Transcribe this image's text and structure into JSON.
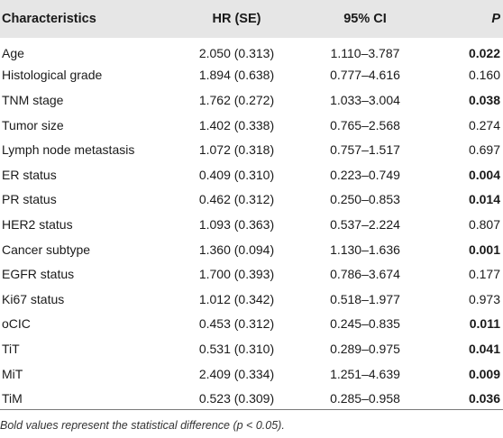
{
  "table": {
    "headers": {
      "characteristics": "Characteristics",
      "hr": "HR (SE)",
      "ci": "95% CI",
      "p": "P"
    },
    "rows": [
      {
        "characteristic": "Age",
        "hr": "2.050 (0.313)",
        "ci": "1.110–3.787",
        "p": "0.022",
        "significant": true
      },
      {
        "characteristic": "Histological grade",
        "hr": "1.894 (0.638)",
        "ci": "0.777–4.616",
        "p": "0.160",
        "significant": false
      },
      {
        "characteristic": "TNM stage",
        "hr": "1.762 (0.272)",
        "ci": "1.033–3.004",
        "p": "0.038",
        "significant": true
      },
      {
        "characteristic": "Tumor size",
        "hr": "1.402 (0.338)",
        "ci": "0.765–2.568",
        "p": "0.274",
        "significant": false
      },
      {
        "characteristic": "Lymph node metastasis",
        "hr": "1.072 (0.318)",
        "ci": "0.757–1.517",
        "p": "0.697",
        "significant": false
      },
      {
        "characteristic": "ER status",
        "hr": "0.409 (0.310)",
        "ci": "0.223–0.749",
        "p": "0.004",
        "significant": true
      },
      {
        "characteristic": "PR status",
        "hr": "0.462 (0.312)",
        "ci": "0.250–0.853",
        "p": "0.014",
        "significant": true
      },
      {
        "characteristic": "HER2 status",
        "hr": "1.093 (0.363)",
        "ci": "0.537–2.224",
        "p": "0.807",
        "significant": false
      },
      {
        "characteristic": "Cancer subtype",
        "hr": "1.360 (0.094)",
        "ci": "1.130–1.636",
        "p": "0.001",
        "significant": true
      },
      {
        "characteristic": "EGFR status",
        "hr": "1.700 (0.393)",
        "ci": "0.786–3.674",
        "p": "0.177",
        "significant": false
      },
      {
        "characteristic": "Ki67 status",
        "hr": "1.012 (0.342)",
        "ci": "0.518–1.977",
        "p": "0.973",
        "significant": false
      },
      {
        "characteristic": "oCIC",
        "hr": "0.453 (0.312)",
        "ci": "0.245–0.835",
        "p": "0.011",
        "significant": true
      },
      {
        "characteristic": "TiT",
        "hr": "0.531 (0.310)",
        "ci": "0.289–0.975",
        "p": "0.041",
        "significant": true
      },
      {
        "characteristic": "MiT",
        "hr": "2.409 (0.334)",
        "ci": "1.251–4.639",
        "p": "0.009",
        "significant": true
      },
      {
        "characteristic": "TiM",
        "hr": "0.523 (0.309)",
        "ci": "0.285–0.958",
        "p": "0.036",
        "significant": true
      }
    ]
  },
  "footnote": "Bold values represent the statistical difference (p < 0.05).",
  "colors": {
    "header_background": "#e6e6e6",
    "text": "#1a1a1a",
    "rule": "#7a7a7a"
  }
}
